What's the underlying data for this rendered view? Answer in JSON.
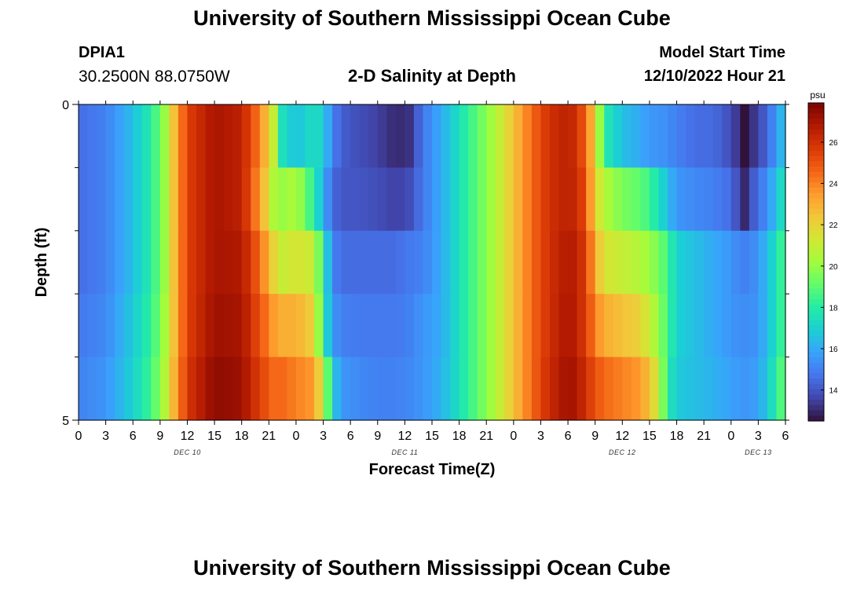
{
  "header": {
    "title": "University of Southern Mississippi Ocean Cube",
    "station_id": "DPIA1",
    "coords": "30.2500N  88.0750W",
    "plot_title": "2-D Salinity at Depth",
    "model_start_label": "Model Start Time",
    "model_start_value": "12/10/2022 Hour 21"
  },
  "footer": {
    "title": "University of Southern Mississippi Ocean Cube"
  },
  "colors": {
    "colormap": [
      "#30123b",
      "#4145ab",
      "#4675ed",
      "#39a2fc",
      "#1bcfd4",
      "#24eca6",
      "#61fc6c",
      "#a4fc3b",
      "#d1e834",
      "#f3c63a",
      "#fe9b2d",
      "#f36315",
      "#d93806",
      "#b11901",
      "#7a0403"
    ]
  },
  "chart_data": {
    "type": "heatmap",
    "title": "2-D Salinity at Depth",
    "xlabel": "Forecast Time(Z)",
    "ylabel": "Depth (ft)",
    "x_ticks": [
      "0",
      "3",
      "6",
      "9",
      "12",
      "15",
      "18",
      "21",
      "0",
      "3",
      "6",
      "9",
      "12",
      "15",
      "18",
      "21",
      "0",
      "3",
      "6",
      "9",
      "12",
      "15",
      "18",
      "21",
      "0",
      "3",
      "6"
    ],
    "x_range_hours": [
      0,
      78
    ],
    "day_labels": [
      {
        "label": "DEC 10",
        "hour": 12
      },
      {
        "label": "DEC 11",
        "hour": 36
      },
      {
        "label": "DEC 12",
        "hour": 60
      },
      {
        "label": "DEC 13",
        "hour": 75
      }
    ],
    "y_ticks": [
      "0",
      "5"
    ],
    "y_range": [
      0,
      5
    ],
    "depth_levels": 5,
    "colorbar": {
      "unit": "psu",
      "range": [
        12.5,
        27.9
      ],
      "ticks": [
        14,
        16,
        18,
        20,
        22,
        24,
        26
      ]
    },
    "keyframes": {
      "hours": [
        0,
        3,
        6,
        8,
        9.5,
        10.5,
        12,
        15,
        18,
        20,
        21.5,
        22.5,
        24,
        26,
        27,
        28,
        29,
        31,
        33,
        35,
        36.5,
        38,
        40,
        42,
        44,
        46,
        48,
        50,
        52,
        54,
        55,
        56,
        57,
        58,
        60,
        62,
        63,
        64,
        65,
        66,
        68,
        70,
        72,
        73,
        73.5,
        74,
        75,
        76,
        77,
        78
      ],
      "rows": [
        [
          14.5,
          15.0,
          16.5,
          18.0,
          20.0,
          22.5,
          25.5,
          27.0,
          26.5,
          24.0,
          21.0,
          17.5,
          16.5,
          17.5,
          17.0,
          15.0,
          14.2,
          13.8,
          13.5,
          13.0,
          13.2,
          14.8,
          16.0,
          17.5,
          19.0,
          20.5,
          22.5,
          24.5,
          26.0,
          26.5,
          26.0,
          24.5,
          22.0,
          18.0,
          16.5,
          16.0,
          15.5,
          15.5,
          15.3,
          15.0,
          14.5,
          14.5,
          13.8,
          13.0,
          12.5,
          13.0,
          13.5,
          14.5,
          15.5,
          17.0
        ],
        [
          14.5,
          15.0,
          16.5,
          18.0,
          20.0,
          22.5,
          25.5,
          27.0,
          26.5,
          23.5,
          20.5,
          20.0,
          20.5,
          18.0,
          16.0,
          14.5,
          14.0,
          14.0,
          13.8,
          13.5,
          13.8,
          14.8,
          16.0,
          17.5,
          19.0,
          20.5,
          22.5,
          24.5,
          26.0,
          26.5,
          26.2,
          25.0,
          22.0,
          20.5,
          19.5,
          19.0,
          18.5,
          17.5,
          16.5,
          15.5,
          15.2,
          15.0,
          14.5,
          13.5,
          13.0,
          13.8,
          14.5,
          15.5,
          16.5,
          18.0
        ],
        [
          14.5,
          15.0,
          16.5,
          18.0,
          20.0,
          22.5,
          25.5,
          27.0,
          26.8,
          24.5,
          22.0,
          21.0,
          21.5,
          21.0,
          18.0,
          15.0,
          14.5,
          14.5,
          14.5,
          14.5,
          14.8,
          15.0,
          16.0,
          17.5,
          19.0,
          20.5,
          22.5,
          24.5,
          26.0,
          26.8,
          26.5,
          25.5,
          23.0,
          21.5,
          21.0,
          20.5,
          20.0,
          19.5,
          18.5,
          17.0,
          16.5,
          16.0,
          15.5,
          15.0,
          15.0,
          15.0,
          15.5,
          16.5,
          17.5,
          19.0
        ],
        [
          14.8,
          15.2,
          16.8,
          18.2,
          20.2,
          22.5,
          25.5,
          27.2,
          27.0,
          25.0,
          23.5,
          23.0,
          23.0,
          22.0,
          18.0,
          15.5,
          15.0,
          14.8,
          14.8,
          14.8,
          15.0,
          15.5,
          16.0,
          17.5,
          19.0,
          20.5,
          22.5,
          24.5,
          26.0,
          27.0,
          26.5,
          25.5,
          24.0,
          23.0,
          22.5,
          22.0,
          21.0,
          20.0,
          18.5,
          17.0,
          16.5,
          16.0,
          15.5,
          15.3,
          15.3,
          15.3,
          15.5,
          16.5,
          17.5,
          19.0
        ],
        [
          15.0,
          15.5,
          17.0,
          18.5,
          20.5,
          22.8,
          25.8,
          27.5,
          27.2,
          25.5,
          24.5,
          24.5,
          24.0,
          23.5,
          21.0,
          17.0,
          15.5,
          15.2,
          15.0,
          15.0,
          15.2,
          15.5,
          16.2,
          17.5,
          19.0,
          20.5,
          22.5,
          24.5,
          26.2,
          27.2,
          26.8,
          26.0,
          25.0,
          24.5,
          24.0,
          23.5,
          22.5,
          21.0,
          18.0,
          16.8,
          16.5,
          16.2,
          15.8,
          15.5,
          15.5,
          15.5,
          15.8,
          16.8,
          18.0,
          19.5
        ]
      ]
    }
  }
}
